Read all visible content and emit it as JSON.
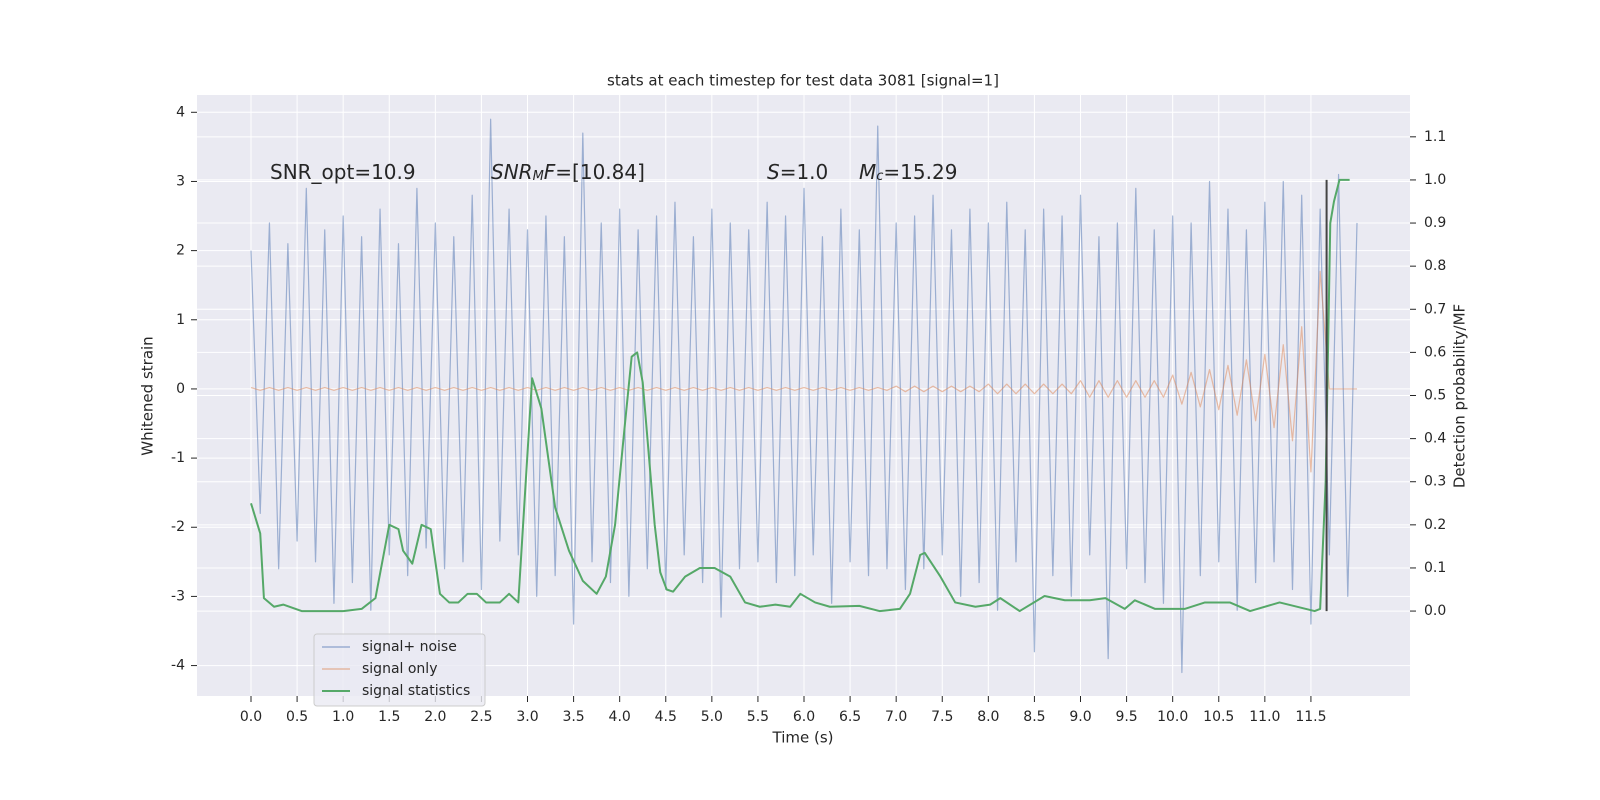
{
  "chart_data": {
    "type": "line",
    "title": "stats at each timestep for test data 3081 [signal=1]",
    "xlabel": "Time (s)",
    "ylabel": "Whitened strain",
    "y2label": "Detection probability/MF",
    "annotations": [
      [
        {
          "text": "SNR_opt=10.9"
        }
      ],
      [
        {
          "text": "SNR",
          "italic": true
        },
        {
          "text": "M",
          "italic": true,
          "sub": true
        },
        {
          "text": "F",
          "italic": true
        },
        {
          "text": "=[10.84]"
        }
      ],
      [
        {
          "text": "S",
          "italic": true
        },
        {
          "text": "=1.0"
        }
      ],
      [
        {
          "text": "M",
          "italic": true
        },
        {
          "text": "c",
          "italic": true,
          "sub": true
        },
        {
          "text": "=15.29"
        }
      ]
    ],
    "xlim": [
      -0.586,
      12.575
    ],
    "ylim": [
      -4.44,
      4.25
    ],
    "y2lim": [
      -0.197,
      1.197
    ],
    "xticks": [
      {
        "value": 0,
        "label": "0.0"
      },
      0.5,
      {
        "value": 1,
        "label": "1.0"
      },
      1.5,
      {
        "value": 2,
        "label": "2.0"
      },
      2.5,
      {
        "value": 3,
        "label": "3.0"
      },
      3.5,
      {
        "value": 4,
        "label": "4.0"
      },
      4.5,
      {
        "value": 5,
        "label": "5.0"
      },
      5.5,
      {
        "value": 6,
        "label": "6.0"
      },
      6.5,
      {
        "value": 7,
        "label": "7.0"
      },
      7.5,
      {
        "value": 8,
        "label": "8.0"
      },
      8.5,
      {
        "value": 9,
        "label": "9.0"
      },
      9.5,
      {
        "value": 10,
        "label": "10.0"
      },
      10.5,
      {
        "value": 11,
        "label": "11.0"
      },
      11.5
    ],
    "yticks": [
      -4,
      -3,
      -2,
      -1,
      0,
      1,
      2,
      3,
      4
    ],
    "y2ticks": [
      {
        "value": 0,
        "label": "0.0"
      },
      0.1,
      0.2,
      0.3,
      0.4,
      0.5,
      0.6,
      0.7,
      0.8,
      0.9,
      {
        "value": 1,
        "label": "1.0"
      },
      1.1
    ],
    "grid": true,
    "legend": "lower left",
    "vline": {
      "x": 11.67,
      "color": "#444444"
    },
    "x": [
      0,
      0.1,
      0.2,
      0.3,
      0.4,
      0.5,
      0.6,
      0.7,
      0.8,
      0.9,
      1,
      1.1,
      1.2,
      1.3,
      1.4,
      1.5,
      1.6,
      1.7,
      1.8,
      1.9,
      2,
      2.1,
      2.2,
      2.3,
      2.4,
      2.5,
      2.6,
      2.7,
      2.8,
      2.9,
      3,
      3.1,
      3.2,
      3.3,
      3.4,
      3.5,
      3.6,
      3.7,
      3.8,
      3.9,
      4,
      4.1,
      4.2,
      4.3,
      4.4,
      4.5,
      4.6,
      4.7,
      4.8,
      4.9,
      5,
      5.1,
      5.2,
      5.3,
      5.4,
      5.5,
      5.6,
      5.7,
      5.8,
      5.9,
      6,
      6.1,
      6.2,
      6.3,
      6.4,
      6.5,
      6.6,
      6.7,
      6.8,
      6.9,
      7,
      7.1,
      7.2,
      7.3,
      7.4,
      7.5,
      7.6,
      7.7,
      7.8,
      7.9,
      8,
      8.1,
      8.2,
      8.3,
      8.4,
      8.5,
      8.6,
      8.7,
      8.8,
      8.9,
      9,
      9.1,
      9.2,
      9.3,
      9.4,
      9.5,
      9.6,
      9.7,
      9.8,
      9.9,
      10,
      10.1,
      10.2,
      10.3,
      10.4,
      10.5,
      10.6,
      10.7,
      10.8,
      10.9,
      11,
      11.1,
      11.2,
      11.3,
      11.4,
      11.5,
      11.6,
      11.7,
      11.8,
      11.9,
      12
    ],
    "series": [
      {
        "name": "signal+ noise",
        "color": "#4c72b0",
        "values": [
          2.0,
          -1.8,
          2.4,
          -2.6,
          2.1,
          -2.2,
          2.9,
          -2.5,
          2.3,
          -3.1,
          2.5,
          -2.8,
          2.2,
          -3.2,
          2.6,
          -2.4,
          2.1,
          -2.7,
          2.9,
          -2.3,
          2.4,
          -2.6,
          2.2,
          -2.5,
          2.8,
          -2.9,
          3.9,
          -2.2,
          2.6,
          -2.4,
          2.3,
          -3.0,
          2.5,
          -2.7,
          2.2,
          -3.4,
          3.7,
          -2.5,
          2.4,
          -2.8,
          2.6,
          -3.0,
          2.3,
          -2.6,
          2.5,
          -2.9,
          2.7,
          -2.4,
          2.2,
          -2.8,
          2.6,
          -3.3,
          2.4,
          -2.6,
          2.3,
          -2.5,
          2.7,
          -2.8,
          2.5,
          -2.7,
          2.9,
          -2.4,
          2.2,
          -3.1,
          2.6,
          -2.5,
          2.3,
          -2.7,
          3.8,
          -2.6,
          2.4,
          -2.9,
          2.5,
          -2.6,
          2.8,
          -2.4,
          2.3,
          -3.0,
          2.6,
          -2.8,
          2.4,
          -3.2,
          2.7,
          -2.5,
          2.3,
          -3.8,
          2.6,
          -2.7,
          2.5,
          -3.0,
          2.8,
          -2.4,
          2.2,
          -3.9,
          2.4,
          -2.6,
          2.9,
          -2.8,
          2.3,
          -3.1,
          2.5,
          -4.1,
          2.4,
          -2.7,
          3.0,
          -2.5,
          2.6,
          -3.2,
          2.3,
          -2.8,
          2.7,
          -2.5,
          3.0,
          -2.9,
          2.8,
          -3.4,
          2.6,
          -2.4,
          3.1,
          -3.0,
          2.4
        ]
      },
      {
        "name": "signal only",
        "color": "#dd8452",
        "values": [
          0.02,
          -0.02,
          0.02,
          -0.02,
          0.02,
          -0.02,
          0.02,
          -0.02,
          0.02,
          -0.02,
          0.02,
          -0.02,
          0.02,
          -0.02,
          0.02,
          -0.02,
          0.02,
          -0.02,
          0.02,
          -0.02,
          0.02,
          -0.02,
          0.02,
          -0.02,
          0.02,
          -0.02,
          0.02,
          -0.02,
          0.02,
          -0.02,
          0.02,
          -0.02,
          0.02,
          -0.02,
          0.02,
          -0.02,
          0.02,
          -0.02,
          0.02,
          -0.02,
          0.02,
          -0.02,
          0.02,
          -0.02,
          0.02,
          -0.02,
          0.02,
          -0.02,
          0.02,
          -0.02,
          0.02,
          -0.02,
          0.02,
          -0.02,
          0.02,
          -0.02,
          0.02,
          -0.02,
          0.02,
          -0.02,
          0.02,
          -0.02,
          0.02,
          -0.02,
          0.02,
          -0.02,
          0.02,
          -0.02,
          0.02,
          -0.02,
          0.04,
          -0.04,
          0.04,
          -0.04,
          0.04,
          -0.04,
          0.04,
          -0.04,
          0.04,
          -0.04,
          0.07,
          -0.07,
          0.07,
          -0.07,
          0.07,
          -0.07,
          0.07,
          -0.07,
          0.07,
          -0.07,
          0.12,
          -0.12,
          0.12,
          -0.12,
          0.12,
          -0.12,
          0.12,
          -0.12,
          0.12,
          -0.12,
          0.2,
          -0.22,
          0.24,
          -0.26,
          0.28,
          -0.3,
          0.34,
          -0.38,
          0.42,
          -0.46,
          0.5,
          -0.56,
          0.64,
          -0.75,
          0.9,
          -1.2,
          1.7,
          0,
          0,
          0,
          0
        ]
      },
      {
        "name": "signal statistics",
        "color": "#55a868",
        "axis": "y2",
        "x": [
          0,
          0.1,
          0.14,
          0.25,
          0.35,
          0.55,
          1.0,
          1.2,
          1.35,
          1.5,
          1.6,
          1.65,
          1.75,
          1.85,
          1.95,
          2.05,
          2.15,
          2.25,
          2.35,
          2.45,
          2.55,
          2.7,
          2.8,
          2.9,
          3.05,
          3.15,
          3.3,
          3.45,
          3.6,
          3.75,
          3.85,
          3.95,
          4.06,
          4.13,
          4.19,
          4.25,
          4.38,
          4.44,
          4.51,
          4.58,
          4.71,
          4.87,
          5.03,
          5.2,
          5.36,
          5.52,
          5.69,
          5.85,
          5.96,
          6.12,
          6.28,
          6.6,
          6.82,
          7.04,
          7.15,
          7.26,
          7.31,
          7.48,
          7.64,
          7.86,
          8.02,
          8.13,
          8.34,
          8.61,
          8.83,
          9.1,
          9.27,
          9.48,
          9.59,
          9.81,
          10.13,
          10.35,
          10.62,
          10.84,
          11.16,
          11.54,
          11.6,
          11.66,
          11.71,
          11.75,
          11.81,
          11.92
        ],
        "values": [
          0.25,
          0.18,
          0.03,
          0.01,
          0.015,
          0.0,
          0.0,
          0.005,
          0.03,
          0.2,
          0.19,
          0.14,
          0.11,
          0.2,
          0.19,
          0.04,
          0.02,
          0.02,
          0.04,
          0.04,
          0.02,
          0.02,
          0.04,
          0.02,
          0.54,
          0.47,
          0.24,
          0.14,
          0.07,
          0.04,
          0.08,
          0.2,
          0.44,
          0.59,
          0.6,
          0.53,
          0.2,
          0.09,
          0.05,
          0.045,
          0.08,
          0.1,
          0.1,
          0.08,
          0.02,
          0.01,
          0.015,
          0.01,
          0.04,
          0.02,
          0.01,
          0.012,
          0.0,
          0.005,
          0.04,
          0.13,
          0.135,
          0.08,
          0.02,
          0.01,
          0.015,
          0.03,
          0.0,
          0.035,
          0.025,
          0.025,
          0.03,
          0.005,
          0.025,
          0.005,
          0.005,
          0.02,
          0.02,
          0.0,
          0.02,
          0.0,
          0.005,
          0.3,
          0.9,
          0.95,
          1.0,
          1.0
        ]
      }
    ]
  }
}
